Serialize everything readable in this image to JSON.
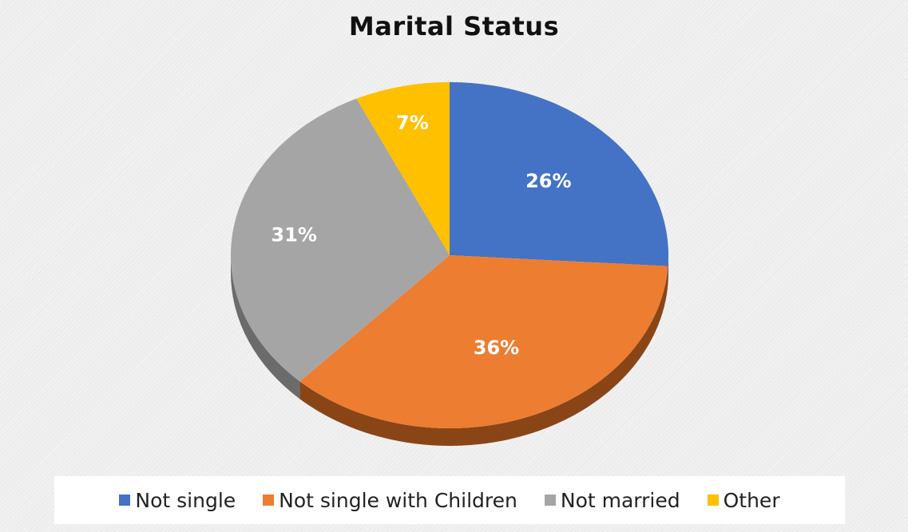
{
  "chart_data": {
    "type": "pie",
    "title": "Marital Status",
    "three_d": true,
    "legend_position": "bottom",
    "slices": [
      {
        "name": "Not single",
        "value": 26,
        "label": "26%",
        "color": "#4472c4",
        "side_color": "#2f4f8a"
      },
      {
        "name": "Not single with Children",
        "value": 36,
        "label": "36%",
        "color": "#ed7d31",
        "side_color": "#8a4517"
      },
      {
        "name": "Not married",
        "value": 31,
        "label": "31%",
        "color": "#a5a5a5",
        "side_color": "#6b6b6b"
      },
      {
        "name": "Other",
        "value": 7,
        "label": "7%",
        "color": "#ffc000",
        "side_color": "#a87e00"
      }
    ]
  }
}
